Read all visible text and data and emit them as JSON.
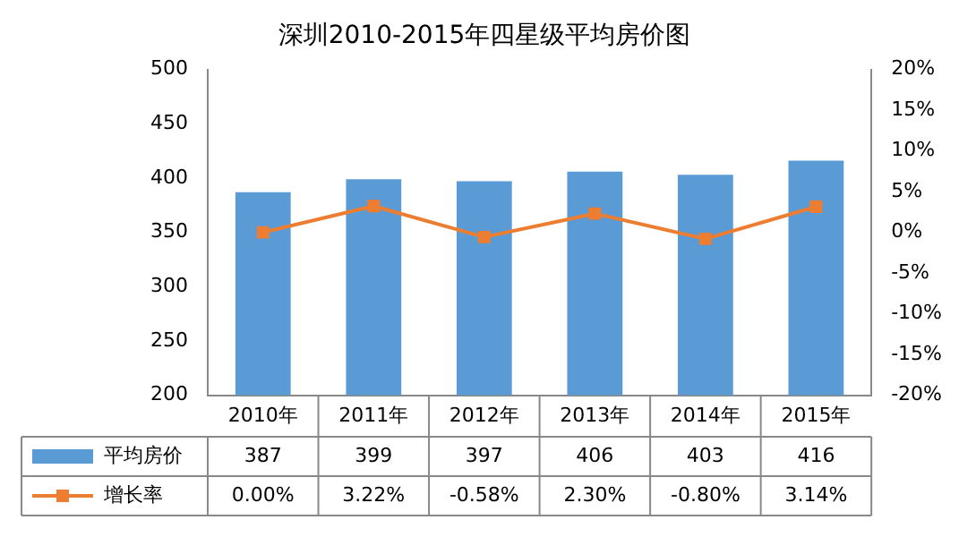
{
  "chart_data": {
    "type": "bar",
    "title": "深圳2010-2015年四星级平均房价图",
    "categories": [
      "2010年",
      "2011年",
      "2012年",
      "2013年",
      "2014年",
      "2015年"
    ],
    "series": [
      {
        "name": "平均房价",
        "color": "#5b9bd5",
        "values": [
          387,
          399,
          397,
          406,
          403,
          416
        ],
        "value_labels": [
          "387",
          "399",
          "397",
          "406",
          "403",
          "416"
        ]
      },
      {
        "name": "增长率",
        "type": "line",
        "axis": "y2",
        "color": "#ed7d31",
        "marker": "square",
        "values": [
          0.0,
          3.22,
          -0.58,
          2.3,
          -0.8,
          3.14
        ],
        "value_labels": [
          "0.00%",
          "3.22%",
          "-0.58%",
          "2.30%",
          "-0.80%",
          "3.14%"
        ]
      }
    ],
    "ylim": [
      200,
      500
    ],
    "yticks": [
      200,
      250,
      300,
      350,
      400,
      450,
      500
    ],
    "y2lim": [
      -20,
      20
    ],
    "y2ticks": [
      {
        "value": -20,
        "label": "-20%"
      },
      {
        "value": -15,
        "label": "-15%"
      },
      {
        "value": -10,
        "label": "-10%"
      },
      {
        "value": -5,
        "label": "-5%"
      },
      {
        "value": 0,
        "label": "0%"
      },
      {
        "value": 5,
        "label": "5%"
      },
      {
        "value": 10,
        "label": "10%"
      },
      {
        "value": 15,
        "label": "15%"
      },
      {
        "value": 20,
        "label": "20%"
      }
    ],
    "data_labels": true,
    "legend": "bottom"
  }
}
